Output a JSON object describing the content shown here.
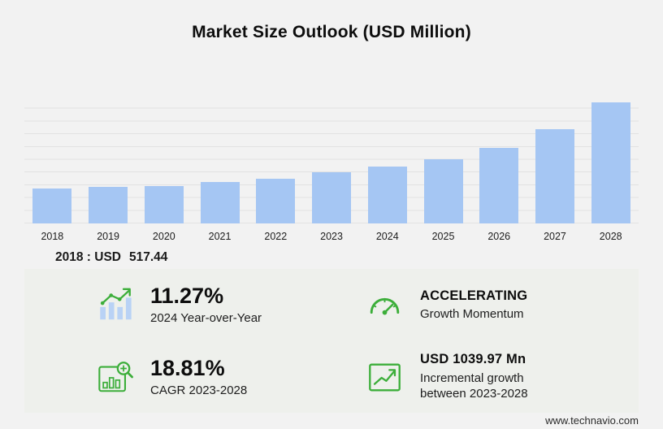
{
  "title": "Market Size Outlook (USD Million)",
  "chart_data": {
    "type": "bar",
    "title": "Market Size Outlook (USD Million)",
    "categories": [
      "2018",
      "2019",
      "2020",
      "2021",
      "2022",
      "2023",
      "2024",
      "2025",
      "2026",
      "2027",
      "2028"
    ],
    "values": [
      517.44,
      541.2,
      562.5,
      611.8,
      669.7,
      760.57,
      846.29,
      958.4,
      1128.9,
      1398.2,
      1800.54
    ],
    "xlabel": "",
    "ylabel": "",
    "ylim": [
      0,
      1900
    ],
    "grid": true,
    "legend": false,
    "bar_color": "#a5c6f3"
  },
  "annotation": {
    "prefix": "2018 : USD",
    "value": "517.44"
  },
  "stats": [
    {
      "icon": "bar-chart-trend-icon",
      "value": "11.27%",
      "label": "2024 Year-over-Year"
    },
    {
      "icon": "speedometer-icon",
      "value": "ACCELERATING",
      "label": "Growth Momentum"
    },
    {
      "icon": "magnifier-chart-icon",
      "value": "18.81%",
      "label": "CAGR 2023-2028"
    },
    {
      "icon": "growth-arrow-icon",
      "value": "USD 1039.97 Mn",
      "label": "Incremental growth between 2023-2028"
    }
  ],
  "footer": {
    "website": "www.technavio.com"
  },
  "colors": {
    "accent_green": "#3cae3a",
    "bar_blue": "#a5c6f3",
    "icon_bar_blue": "#b9d2f5"
  }
}
